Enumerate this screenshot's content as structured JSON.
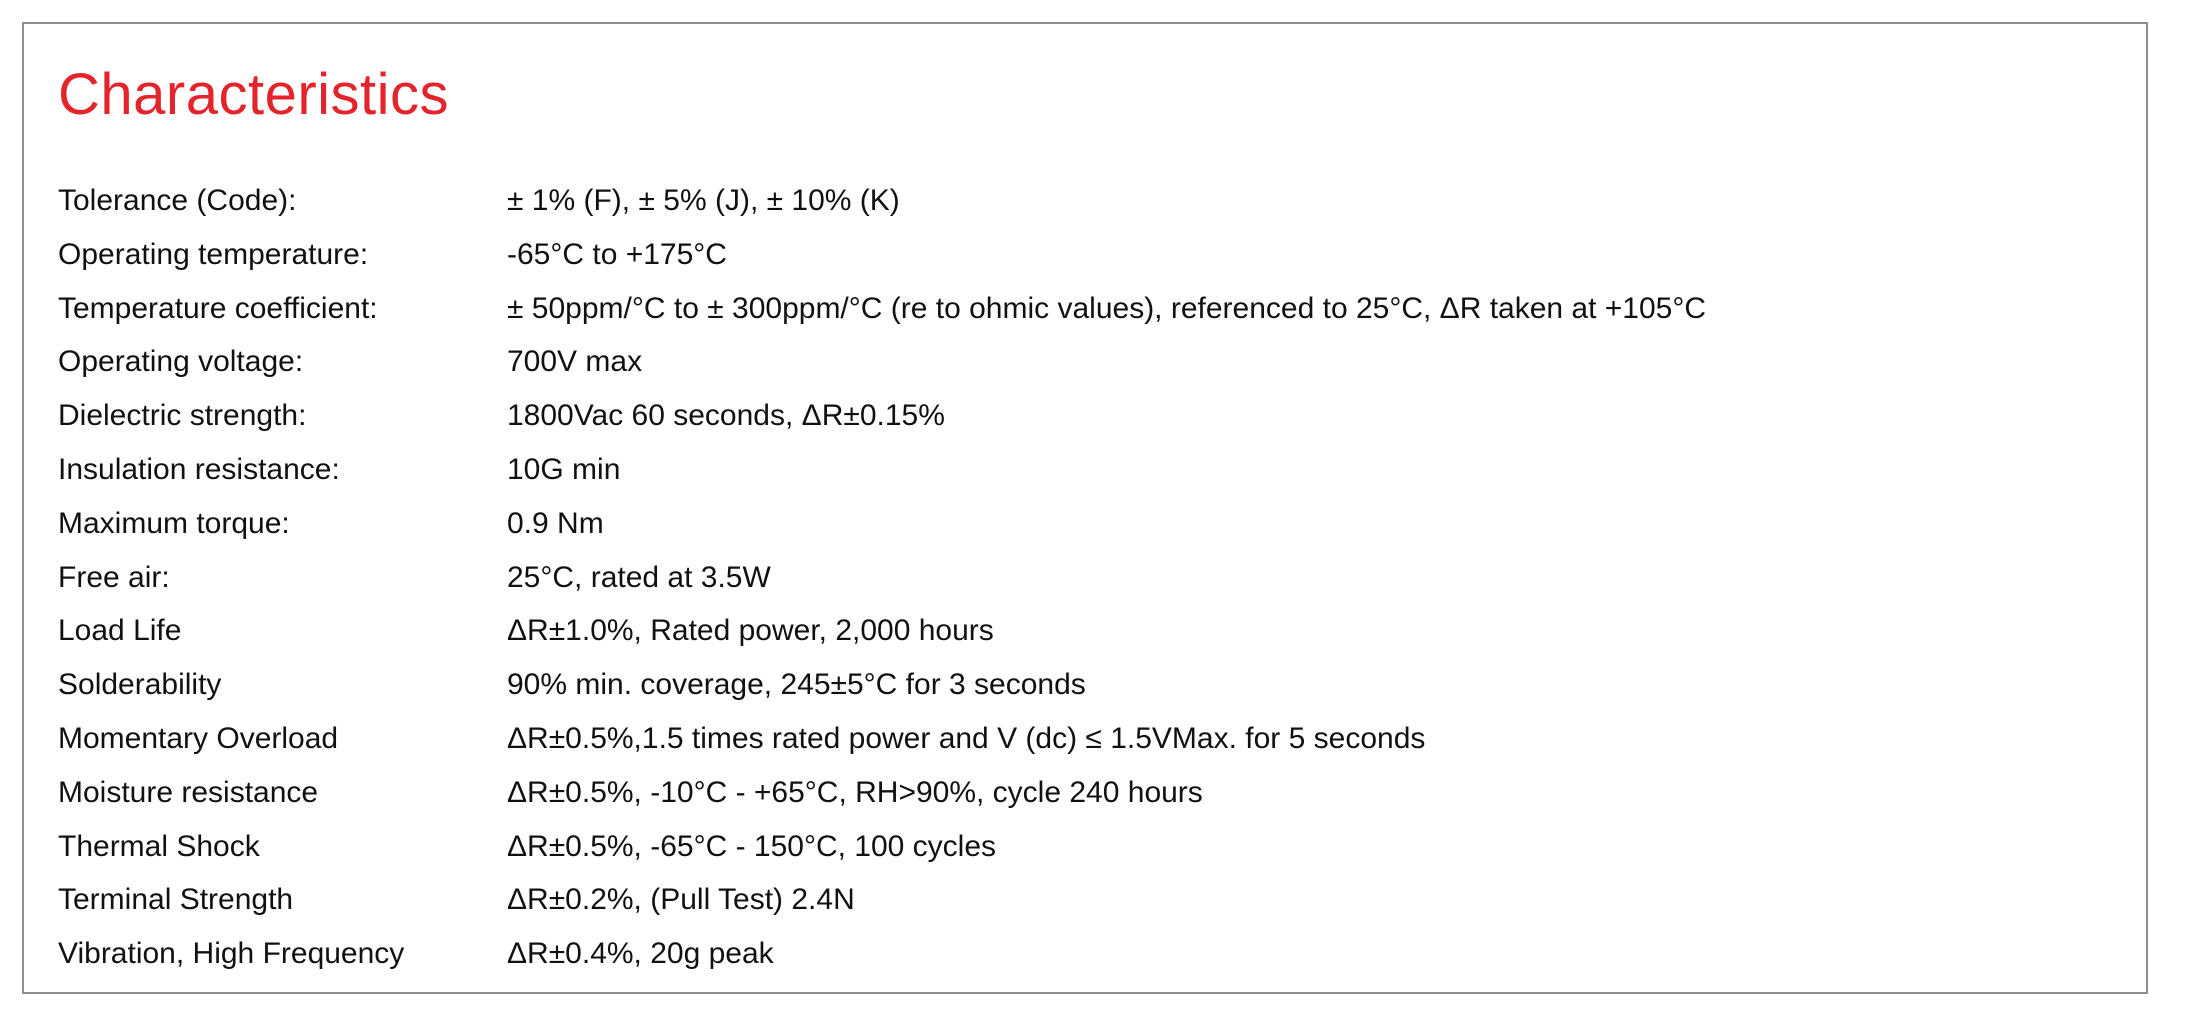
{
  "section": {
    "title": "Characteristics"
  },
  "rows": [
    {
      "label": "Tolerance (Code):",
      "value": "± 1% (F), ± 5% (J), ± 10% (K)"
    },
    {
      "label": "Operating temperature:",
      "value": "-65°C to +175°C"
    },
    {
      "label": "Temperature coefficient:",
      "value": "± 50ppm/°C to ± 300ppm/°C (re to ohmic values), referenced to 25°C, ΔR taken at +105°C"
    },
    {
      "label": "Operating voltage:",
      "value": "700V max"
    },
    {
      "label": "Dielectric strength:",
      "value": "1800Vac 60 seconds, ΔR±0.15%"
    },
    {
      "label": "Insulation resistance:",
      "value": "10G min"
    },
    {
      "label": "Maximum torque:",
      "value": "0.9 Nm"
    },
    {
      "label": "Free air:",
      "value": "25°C, rated at 3.5W"
    },
    {
      "label": "Load Life",
      "value": "ΔR±1.0%, Rated power, 2,000 hours"
    },
    {
      "label": "Solderability",
      "value": "90% min. coverage, 245±5°C for 3 seconds"
    },
    {
      "label": "Momentary Overload",
      "value": "ΔR±0.5%,1.5 times rated power and V (dc) ≤ 1.5VMax. for 5 seconds"
    },
    {
      "label": "Moisture resistance",
      "value": "ΔR±0.5%, -10°C - +65°C, RH>90%, cycle 240 hours"
    },
    {
      "label": "Thermal Shock",
      "value": "ΔR±0.5%, -65°C - 150°C, 100 cycles"
    },
    {
      "label": "Terminal Strength",
      "value": "ΔR±0.2%, (Pull Test) 2.4N"
    },
    {
      "label": "Vibration, High Frequency",
      "value": "ΔR±0.4%, 20g peak"
    }
  ],
  "colors": {
    "title": "#e3242b",
    "text": "#111111",
    "border": "#8f8f8f"
  }
}
